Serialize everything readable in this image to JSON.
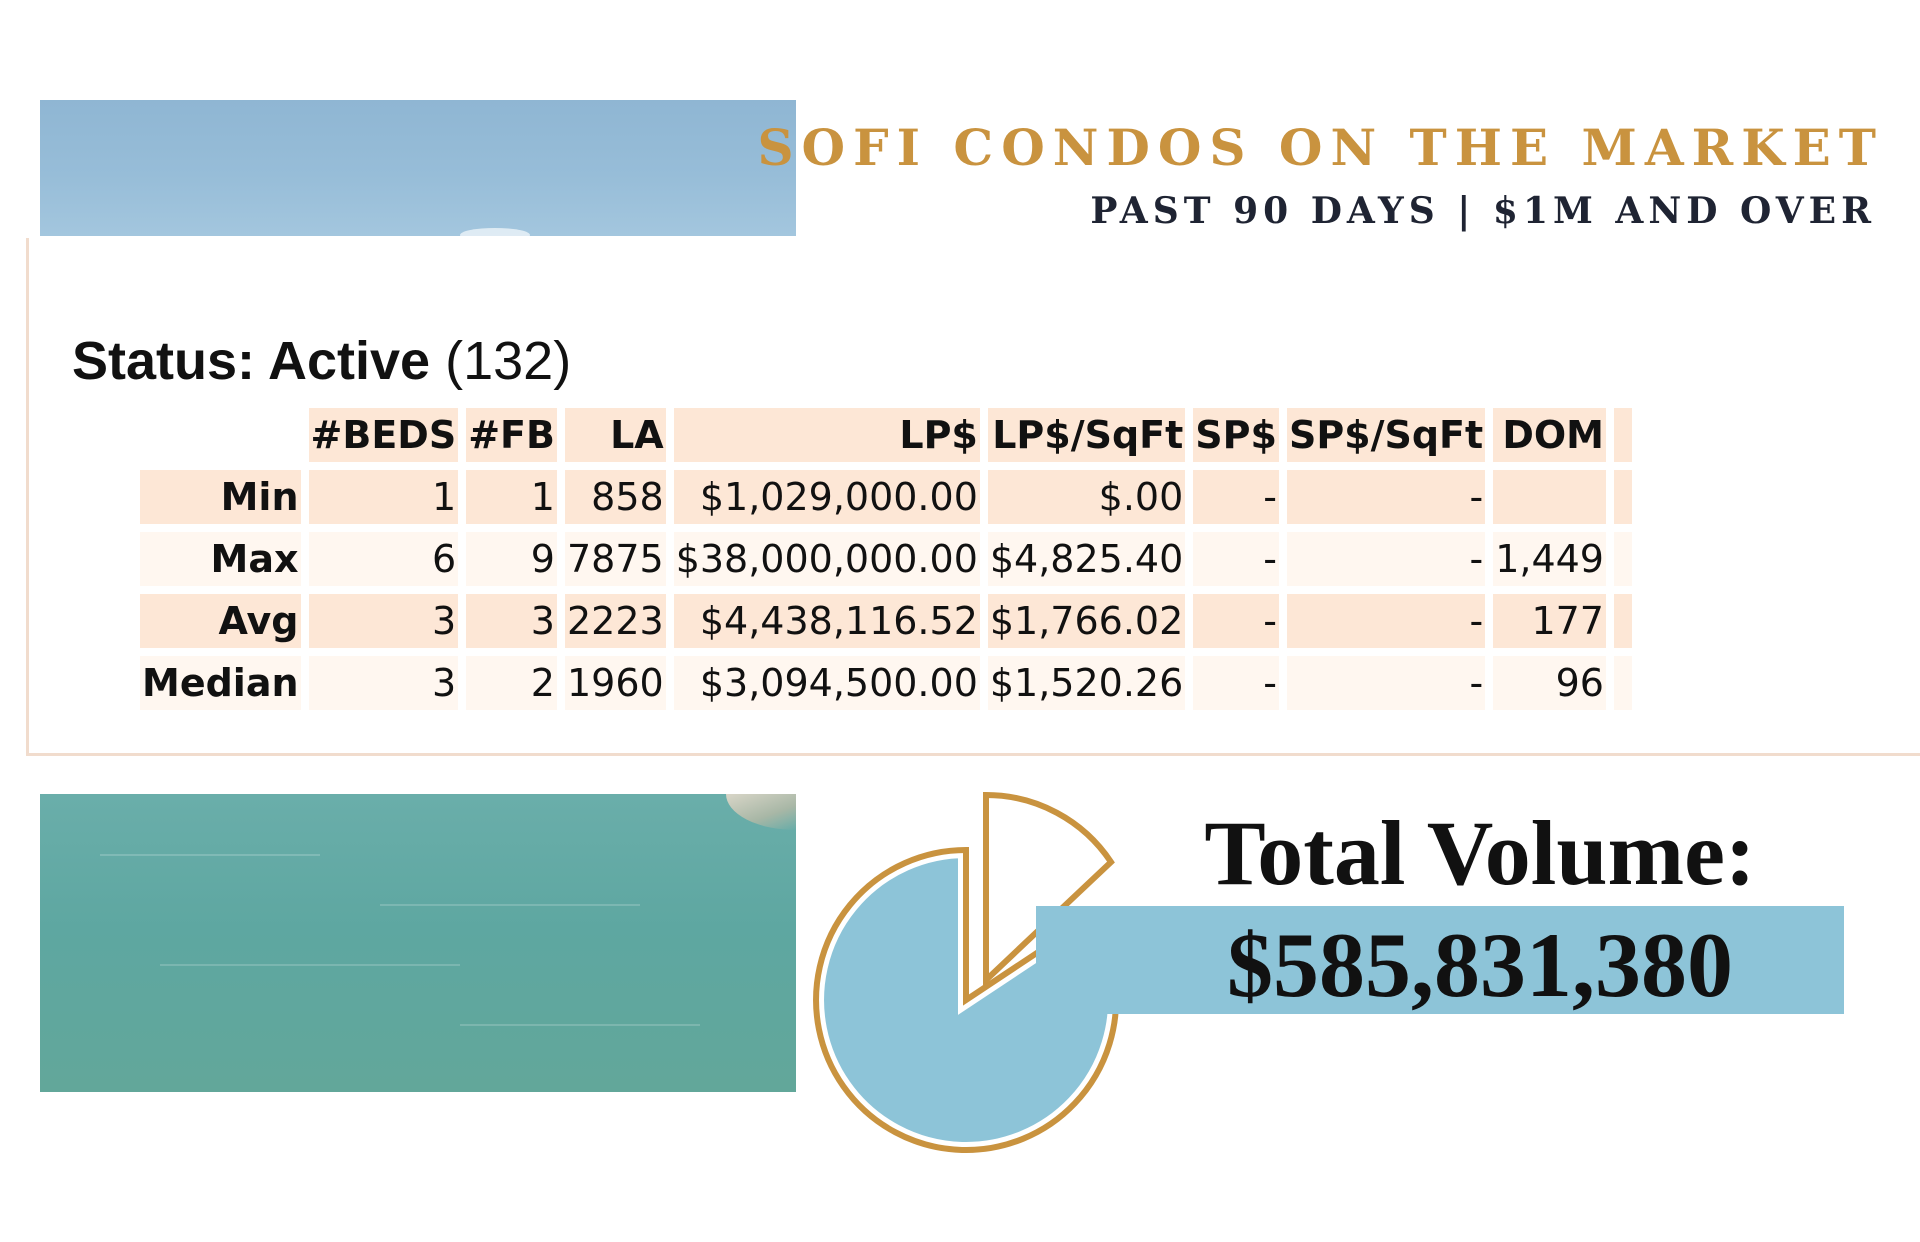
{
  "header": {
    "title": "SOFI CONDOS ON THE MARKET",
    "subtitle": "PAST 90 DAYS | $1M AND OVER"
  },
  "status": {
    "label": "Status: Active",
    "count": "(132)"
  },
  "table": {
    "columns": [
      "#BEDS",
      "#FB",
      "LA",
      "LP$",
      "LP$/SqFt",
      "SP$",
      "SP$/SqFt",
      "DOM"
    ],
    "rows": [
      {
        "label": "Min",
        "cells": [
          "1",
          "1",
          "858",
          "$1,029,000.00",
          "$.00",
          "-",
          "-",
          ""
        ]
      },
      {
        "label": "Max",
        "cells": [
          "6",
          "9",
          "7875",
          "$38,000,000.00",
          "$4,825.40",
          "-",
          "-",
          "1,449"
        ]
      },
      {
        "label": "Avg",
        "cells": [
          "3",
          "3",
          "2223",
          "$4,438,116.52",
          "$1,766.02",
          "-",
          "-",
          "177"
        ]
      },
      {
        "label": "Median",
        "cells": [
          "3",
          "2",
          "1960",
          "$3,094,500.00",
          "$1,520.26",
          "-",
          "-",
          "96"
        ]
      }
    ]
  },
  "volume": {
    "label": "Total Volume:",
    "value": "$585,831,380"
  },
  "colors": {
    "accent_gold": "#c9933f",
    "table_fill": "#fde7d6",
    "volume_bar": "#8dc4d8",
    "pie_fill": "#8dc4d8"
  },
  "icons": {
    "pie": "pie-chart-icon"
  }
}
